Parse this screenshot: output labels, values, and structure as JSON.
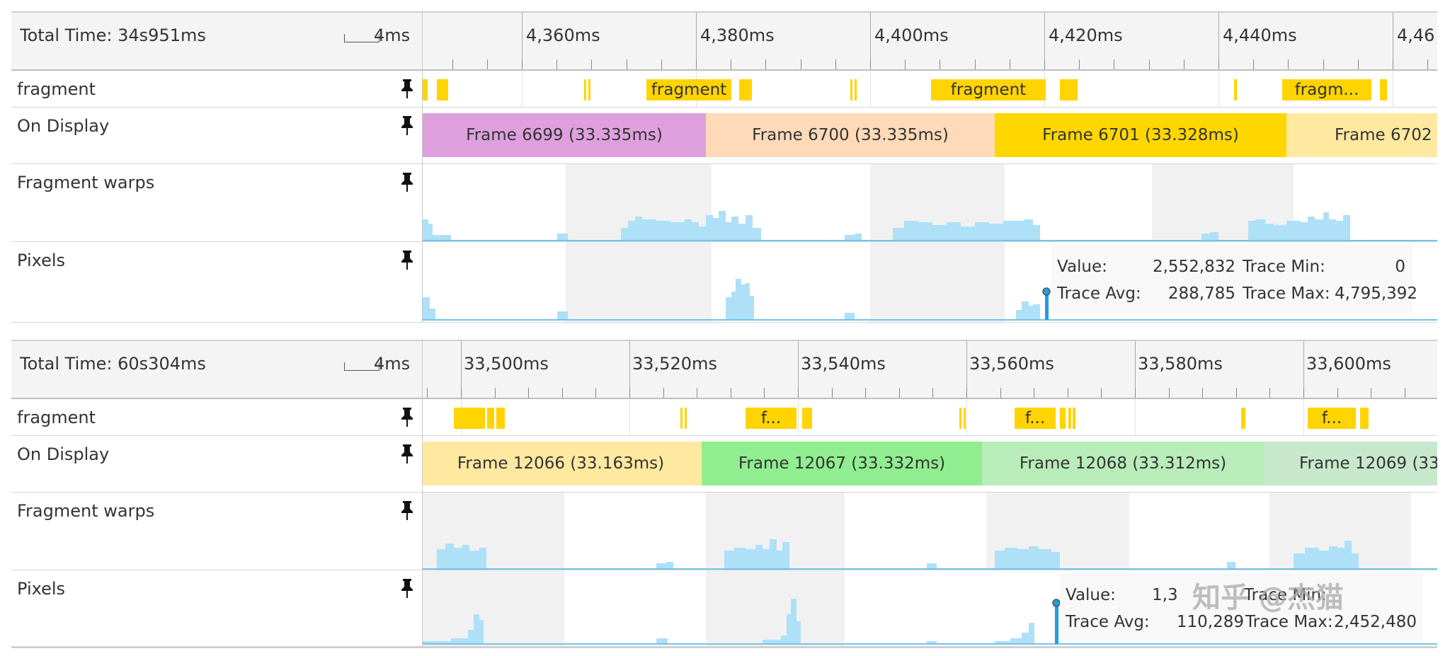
{
  "panels": [
    {
      "total_time": "Total Time: 34s951ms",
      "scale": "4ms",
      "ticks": [
        "4,360ms",
        "4,380ms",
        "4,400ms",
        "4,420ms",
        "4,440ms",
        "4,46"
      ],
      "tracks": {
        "fragment": "fragment",
        "on_display": "On Display",
        "fragment_warps": "Fragment warps",
        "pixels": "Pixels"
      },
      "fragment_labels": [
        "fragment",
        "fragment",
        "fragm..."
      ],
      "frames": [
        {
          "label": "Frame 6699 (33.335ms)",
          "color": "#dda0dd"
        },
        {
          "label": "Frame 6700 (33.335ms)",
          "color": "#ffdab9"
        },
        {
          "label": "Frame 6701 (33.328ms)",
          "color": "#ffd700"
        },
        {
          "label": "Frame 6702",
          "color": "#ffe9a0"
        }
      ],
      "tooltip": {
        "value_label": "Value:",
        "value": "2,552,832",
        "min_label": "Trace Min:",
        "min": "0",
        "avg_label": "Trace Avg:",
        "avg": "288,785",
        "max_label": "Trace Max:",
        "max": "4,795,392"
      }
    },
    {
      "total_time": "Total Time: 60s304ms",
      "scale": "4ms",
      "ticks": [
        "33,500ms",
        "33,520ms",
        "33,540ms",
        "33,560ms",
        "33,580ms",
        "33,600ms"
      ],
      "tracks": {
        "fragment": "fragment",
        "on_display": "On Display",
        "fragment_warps": "Fragment warps",
        "pixels": "Pixels"
      },
      "fragment_labels": [
        "f...",
        "f...",
        "f..."
      ],
      "frames": [
        {
          "label": "Frame 12066 (33.163ms)",
          "color": "#ffe9a0"
        },
        {
          "label": "Frame 12067 (33.332ms)",
          "color": "#90ee90"
        },
        {
          "label": "Frame 12068 (33.312ms)",
          "color": "#b8ecb8"
        },
        {
          "label": "Frame 12069 (33",
          "color": "#c8e8cc"
        }
      ],
      "tooltip": {
        "value_label": "Value:",
        "value": "1,3",
        "min_label": "Trace Min:",
        "min": "",
        "avg_label": "Trace Avg:",
        "avg": "110,289",
        "max_label": "Trace Max:",
        "max": "2,452,480"
      }
    }
  ],
  "watermark": "知乎 @杰猫",
  "colors": {
    "fragment": "#ffd400",
    "counter_fill": "#aee0f8",
    "counter_line": "#70c4ee",
    "marker": "#1e9fe0"
  }
}
